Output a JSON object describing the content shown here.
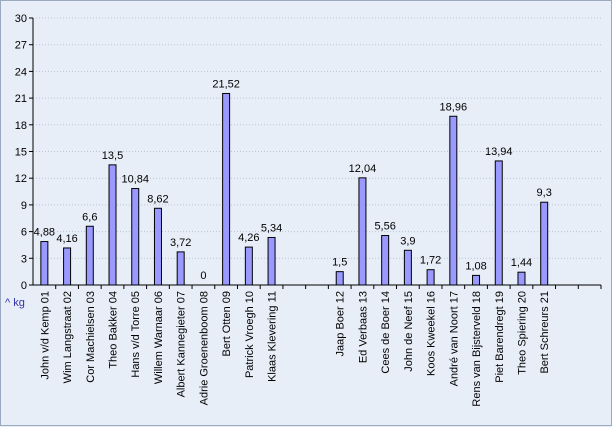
{
  "chart_data": {
    "type": "bar",
    "ylabel": "^ kg",
    "ylim": [
      0,
      30
    ],
    "yticks": [
      0,
      3,
      6,
      9,
      12,
      15,
      18,
      21,
      24,
      27,
      30
    ],
    "grid": true,
    "bar_color": "#9999ff",
    "categories": [
      "John v/d Kemp 01",
      "Wim Langstraat 02",
      "Cor Machielsen 03",
      "Theo Bakker 04",
      "Hans v/d Torre 05",
      "Willem Warnaar 06",
      "Albert Kannegieter 07",
      "Adrie Groenenboom 08",
      "Bert Otten 09",
      "Patrick Vroegh 10",
      "Klaas Klevering 11",
      "",
      "",
      "Jaap Boer 12",
      "Ed Verbaas 13",
      "Cees de Boer 14",
      "John de Neef 15",
      "Koos Kweekel 16",
      "André van Noort 17",
      "Rens van Bijsterveld 18",
      "Piet Barendregt 19",
      "Theo Spiering 20",
      "Bert Schreurs 21",
      "",
      ""
    ],
    "values": [
      4.88,
      4.16,
      6.6,
      13.5,
      10.84,
      8.62,
      3.72,
      0,
      21.52,
      4.26,
      5.34,
      null,
      null,
      1.5,
      12.04,
      5.56,
      3.9,
      1.72,
      18.96,
      1.08,
      13.94,
      1.44,
      9.3,
      null,
      null
    ],
    "data_labels": [
      "4,88",
      "4,16",
      "6,6",
      "13,5",
      "10,84",
      "8,62",
      "3,72",
      "0",
      "21,52",
      "4,26",
      "5,34",
      "",
      "",
      "1,5",
      "12,04",
      "5,56",
      "3,9",
      "1,72",
      "18,96",
      "1,08",
      "13,94",
      "1,44",
      "9,3",
      "",
      ""
    ]
  }
}
